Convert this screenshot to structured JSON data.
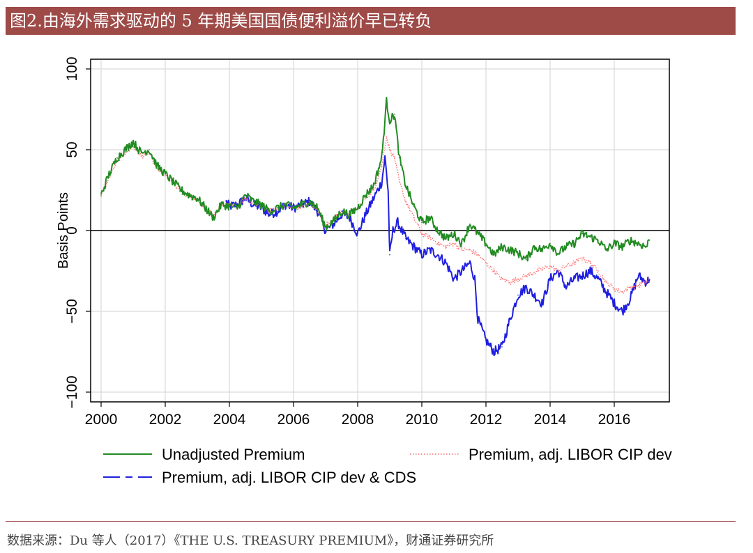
{
  "header": {
    "title": "图2.由海外需求驱动的 5 年期美国国债便利溢价早已转负"
  },
  "footer": {
    "source": "数据来源：Du 等人（2017）《THE U.S. TREASURY PREMIUM》，财通证券研究所"
  },
  "colors": {
    "banner": "#9e4a47",
    "green": "#228b22",
    "red": "#ff6f6f",
    "blue": "#1f1fe0"
  },
  "chart_data": {
    "type": "line",
    "xlabel": "",
    "ylabel": "Basis Points",
    "xlim": [
      2000,
      2017.8
    ],
    "ylim": [
      -100,
      100
    ],
    "xticks": [
      "2000",
      "2002",
      "2004",
      "2006",
      "2008",
      "2010",
      "2012",
      "2014",
      "2016"
    ],
    "yticks": [
      "100",
      "50",
      "0",
      "−50",
      "−100"
    ],
    "grid": true,
    "legend_position": "bottom",
    "series": [
      {
        "name": "Unadjusted Premium",
        "style": "solid",
        "x": [
          2000.0,
          2000.25,
          2000.5,
          2000.75,
          2001.0,
          2001.25,
          2001.5,
          2001.75,
          2002.0,
          2002.25,
          2002.5,
          2002.75,
          2003.0,
          2003.25,
          2003.5,
          2003.75,
          2004.0,
          2004.25,
          2004.5,
          2004.75,
          2005.0,
          2005.25,
          2005.5,
          2005.75,
          2006.0,
          2006.25,
          2006.5,
          2006.75,
          2007.0,
          2007.25,
          2007.5,
          2007.75,
          2008.0,
          2008.25,
          2008.5,
          2008.75,
          2008.9,
          2009.0,
          2009.15,
          2009.3,
          2009.5,
          2009.75,
          2010.0,
          2010.25,
          2010.5,
          2010.75,
          2011.0,
          2011.25,
          2011.5,
          2011.75,
          2012.0,
          2012.25,
          2012.5,
          2012.75,
          2013.0,
          2013.25,
          2013.5,
          2013.75,
          2014.0,
          2014.25,
          2014.5,
          2014.75,
          2015.0,
          2015.25,
          2015.5,
          2015.75,
          2016.0,
          2016.25,
          2016.5,
          2016.75,
          2017.0,
          2017.1
        ],
        "y": [
          22,
          35,
          45,
          50,
          55,
          48,
          50,
          40,
          35,
          30,
          25,
          22,
          20,
          14,
          8,
          16,
          15,
          14,
          22,
          18,
          16,
          12,
          14,
          16,
          14,
          16,
          18,
          14,
          2,
          6,
          12,
          10,
          14,
          22,
          28,
          45,
          80,
          68,
          72,
          45,
          28,
          15,
          5,
          8,
          0,
          -5,
          -2,
          -8,
          4,
          -2,
          -8,
          -15,
          -10,
          -12,
          -14,
          -18,
          -10,
          -12,
          -8,
          -14,
          -10,
          -8,
          -2,
          -4,
          -6,
          -12,
          -8,
          -10,
          -6,
          -8,
          -10,
          -6
        ]
      },
      {
        "name": "Premium, adj. LIBOR CIP dev",
        "style": "dotted",
        "x": [
          2000.0,
          2000.25,
          2000.5,
          2000.75,
          2001.0,
          2001.25,
          2001.5,
          2001.75,
          2002.0,
          2002.25,
          2002.5,
          2002.75,
          2003.0,
          2003.25,
          2003.5,
          2003.75,
          2004.0,
          2004.25,
          2004.5,
          2004.75,
          2005.0,
          2005.25,
          2005.5,
          2005.75,
          2006.0,
          2006.25,
          2006.5,
          2006.75,
          2007.0,
          2007.25,
          2007.5,
          2007.75,
          2008.0,
          2008.25,
          2008.5,
          2008.75,
          2008.9,
          2009.0,
          2009.15,
          2009.3,
          2009.5,
          2009.75,
          2010.0,
          2010.25,
          2010.5,
          2010.75,
          2011.0,
          2011.25,
          2011.5,
          2011.75,
          2012.0,
          2012.25,
          2012.5,
          2012.75,
          2013.0,
          2013.25,
          2013.5,
          2013.75,
          2014.0,
          2014.25,
          2014.5,
          2014.75,
          2015.0,
          2015.25,
          2015.5,
          2015.75,
          2016.0,
          2016.25,
          2016.5,
          2016.75,
          2017.0,
          2017.1
        ],
        "y": [
          22,
          33,
          43,
          48,
          52,
          46,
          48,
          38,
          34,
          29,
          24,
          21,
          19,
          14,
          9,
          16,
          16,
          15,
          20,
          17,
          15,
          12,
          14,
          16,
          14,
          15,
          17,
          13,
          3,
          7,
          12,
          10,
          14,
          20,
          25,
          40,
          58,
          50,
          45,
          30,
          18,
          8,
          -2,
          -4,
          -8,
          -10,
          -8,
          -12,
          -12,
          -15,
          -20,
          -25,
          -30,
          -32,
          -30,
          -28,
          -26,
          -24,
          -22,
          -25,
          -22,
          -20,
          -17,
          -20,
          -25,
          -32,
          -36,
          -38,
          -35,
          -34,
          -32,
          -30
        ]
      },
      {
        "name": "Premium, adj. LIBOR CIP dev & CDS",
        "style": "dashed",
        "x": [
          2003.9,
          2004.0,
          2004.25,
          2004.5,
          2004.75,
          2005.0,
          2005.25,
          2005.5,
          2005.75,
          2006.0,
          2006.25,
          2006.5,
          2006.75,
          2007.0,
          2007.25,
          2007.5,
          2007.75,
          2008.0,
          2008.25,
          2008.5,
          2008.75,
          2008.85,
          2008.95,
          2009.0,
          2009.1,
          2009.25,
          2009.5,
          2009.75,
          2010.0,
          2010.25,
          2010.5,
          2010.75,
          2011.0,
          2011.25,
          2011.5,
          2011.65,
          2011.75,
          2012.0,
          2012.25,
          2012.5,
          2012.75,
          2013.0,
          2013.25,
          2013.5,
          2013.75,
          2014.0,
          2014.25,
          2014.5,
          2014.75,
          2015.0,
          2015.25,
          2015.5,
          2015.75,
          2016.0,
          2016.25,
          2016.5,
          2016.75,
          2017.0,
          2017.1
        ],
        "y": [
          18,
          15,
          16,
          20,
          16,
          14,
          10,
          12,
          16,
          14,
          16,
          18,
          12,
          0,
          4,
          10,
          8,
          -2,
          10,
          20,
          30,
          45,
          25,
          -15,
          0,
          5,
          -5,
          -10,
          -15,
          -12,
          -15,
          -20,
          -30,
          -25,
          -20,
          -30,
          -55,
          -68,
          -75,
          -72,
          -55,
          -40,
          -35,
          -40,
          -45,
          -30,
          -25,
          -35,
          -30,
          -28,
          -25,
          -30,
          -38,
          -45,
          -50,
          -42,
          -28,
          -32,
          -30
        ]
      }
    ],
    "legend": [
      "Unadjusted Premium",
      "Premium, adj. LIBOR CIP dev",
      "Premium, adj. LIBOR CIP dev & CDS"
    ]
  }
}
